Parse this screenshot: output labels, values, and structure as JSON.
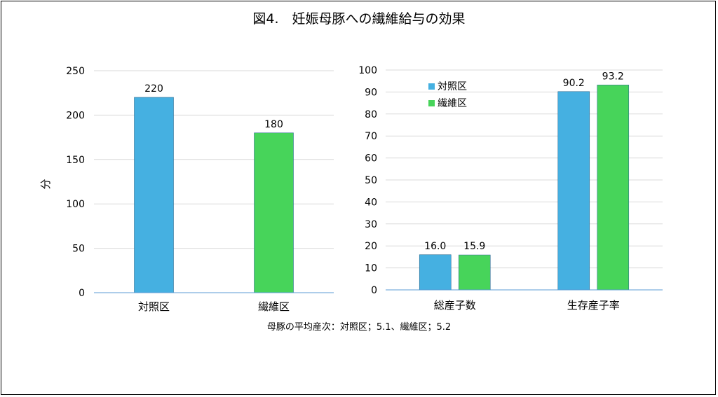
{
  "title": "図4.　妊娠母豚への繊維給与の効果",
  "note": "母豚の平均産次：対照区；5.1、繊維区；5.2",
  "colors": {
    "control": "#45b0e1",
    "fiber": "#47d45a",
    "grid": "#d9d9d9",
    "axis": "#5b9bd5"
  },
  "chart_data": [
    {
      "type": "bar",
      "categories": [
        "対照区",
        "繊維区"
      ],
      "values": [
        220,
        180
      ],
      "data_labels": [
        "220",
        "180"
      ],
      "ylabel": "分",
      "ylim": [
        0,
        250
      ],
      "yticks": [
        "0",
        "50",
        "100",
        "150",
        "200",
        "250"
      ],
      "grid": true
    },
    {
      "type": "bar",
      "categories": [
        "総産子数",
        "生存産子率"
      ],
      "series": [
        {
          "name": "対照区",
          "values": [
            16.0,
            90.2
          ],
          "data_labels": [
            "16.0",
            "90.2"
          ]
        },
        {
          "name": "繊維区",
          "values": [
            15.9,
            93.2
          ],
          "data_labels": [
            "15.9",
            "93.2"
          ]
        }
      ],
      "ylim": [
        0,
        100
      ],
      "yticks": [
        "0",
        "10",
        "20",
        "30",
        "40",
        "50",
        "60",
        "70",
        "80",
        "90",
        "100"
      ],
      "legend": "top-left",
      "grid": true
    }
  ]
}
